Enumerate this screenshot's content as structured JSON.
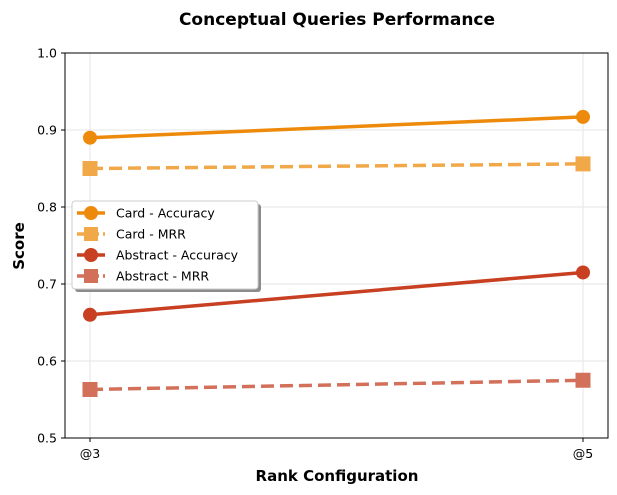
{
  "chart_data": {
    "type": "line",
    "title": "Conceptual Queries Performance",
    "xlabel": "Rank Configuration",
    "ylabel": "Score",
    "categories": [
      "@3",
      "@5"
    ],
    "ylim": [
      0.5,
      1.0
    ],
    "yticks": [
      "0.5",
      "0.6",
      "0.7",
      "0.8",
      "0.9",
      "1.0"
    ],
    "grid": true,
    "legend_position": "center-left",
    "series": [
      {
        "name": "Card - Accuracy",
        "values": [
          0.89,
          0.917
        ],
        "color": "#EE8A0B",
        "dash": "solid",
        "marker": "circle"
      },
      {
        "name": "Card - MRR",
        "values": [
          0.85,
          0.856
        ],
        "color": "#F0A848",
        "dash": "dashed",
        "marker": "square"
      },
      {
        "name": "Abstract - Accuracy",
        "values": [
          0.66,
          0.715
        ],
        "color": "#C83F22",
        "dash": "solid",
        "marker": "circle"
      },
      {
        "name": "Abstract - MRR",
        "values": [
          0.563,
          0.575
        ],
        "color": "#D2705A",
        "dash": "dashed",
        "marker": "square"
      }
    ]
  }
}
